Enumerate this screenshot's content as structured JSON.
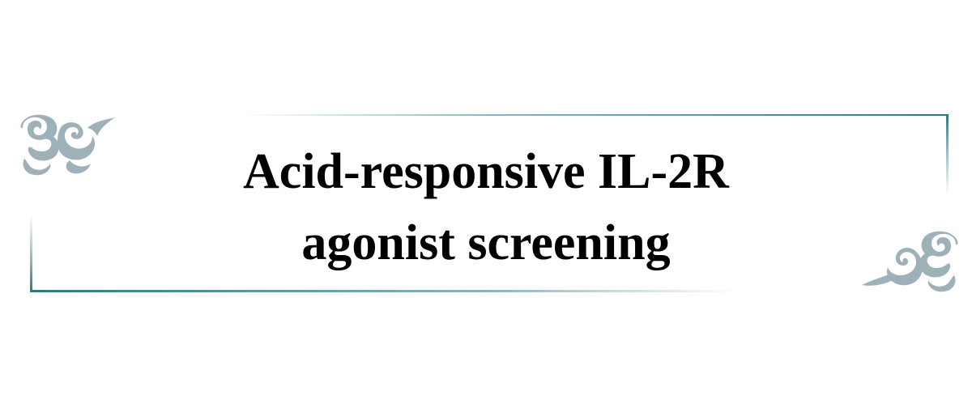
{
  "title": {
    "line1": "Acid-responsive IL-2R",
    "line2": "agonist screening"
  },
  "colors": {
    "background": "#ffffff",
    "frame": "#2f7980",
    "cloud": "#9fb1b8",
    "text": "#000000"
  },
  "decorations": {
    "top_left": "cloud-ornament-icon",
    "bottom_right": "cloud-ornament-icon"
  }
}
